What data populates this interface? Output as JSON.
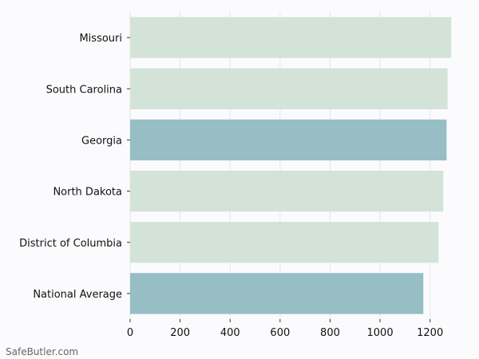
{
  "chart_data": {
    "type": "bar",
    "orientation": "horizontal",
    "categories": [
      "Missouri",
      "South Carolina",
      "Georgia",
      "North Dakota",
      "District of Columbia",
      "National Average"
    ],
    "values": [
      1285,
      1270,
      1266,
      1253,
      1234,
      1173
    ],
    "highlighted": [
      false,
      false,
      true,
      false,
      false,
      true
    ],
    "x_ticks": [
      0,
      200,
      400,
      600,
      800,
      1000,
      1200
    ],
    "xlim": [
      0,
      1300
    ],
    "grid": "vertical",
    "title": "",
    "xlabel": "",
    "ylabel": "",
    "colors": {
      "bar": "#d4e3d7",
      "highlight": "#97bdc5",
      "grid": "#e5e5ea",
      "axis": "#333333"
    }
  },
  "watermark": "SafeButler.com"
}
